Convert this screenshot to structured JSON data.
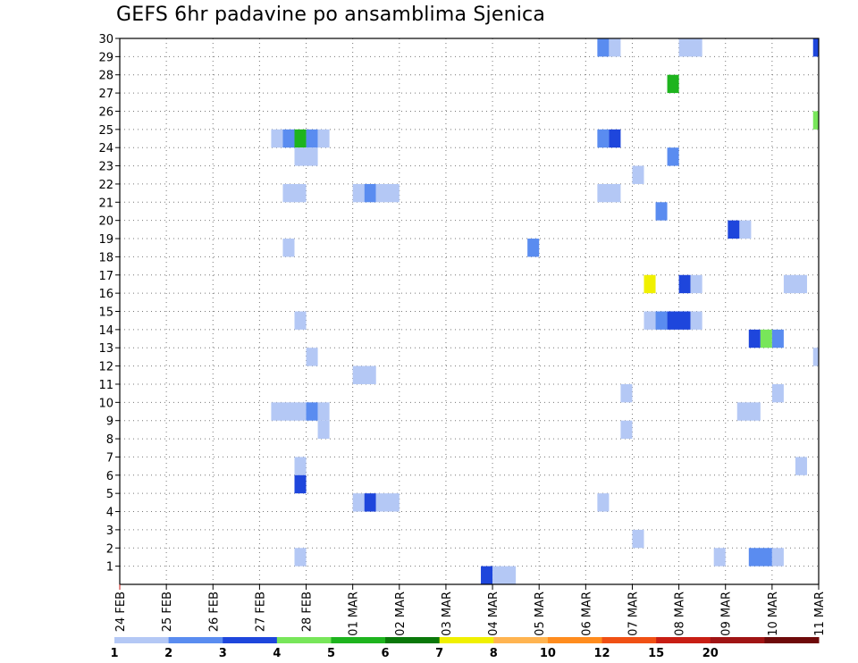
{
  "chart_data": {
    "type": "heatmap",
    "title": "GEFS 6hr padavine po ansamblima Sjenica",
    "xlabel": "",
    "ylabel": "",
    "x_unit": "day",
    "xlim": [
      0,
      15
    ],
    "ylim": [
      0,
      30
    ],
    "grid": true,
    "x_ticks": [
      {
        "x": 0,
        "label": "24 FEB"
      },
      {
        "x": 1,
        "label": "25 FEB"
      },
      {
        "x": 2,
        "label": "26 FEB"
      },
      {
        "x": 3,
        "label": "27 FEB"
      },
      {
        "x": 4,
        "label": "28 FEB"
      },
      {
        "x": 5,
        "label": "01 MAR"
      },
      {
        "x": 6,
        "label": "02 MAR"
      },
      {
        "x": 7,
        "label": "03 MAR"
      },
      {
        "x": 8,
        "label": "04 MAR"
      },
      {
        "x": 9,
        "label": "05 MAR"
      },
      {
        "x": 10,
        "label": "06 MAR"
      },
      {
        "x": 11,
        "label": "07 MAR"
      },
      {
        "x": 12,
        "label": "08 MAR"
      },
      {
        "x": 13,
        "label": "09 MAR"
      },
      {
        "x": 14,
        "label": "10 MAR"
      },
      {
        "x": 15,
        "label": "11 MAR"
      }
    ],
    "y_ticks": [
      1,
      2,
      3,
      4,
      5,
      6,
      7,
      8,
      9,
      10,
      11,
      12,
      13,
      14,
      15,
      16,
      17,
      18,
      19,
      20,
      21,
      22,
      23,
      24,
      25,
      26,
      27,
      28,
      29,
      30
    ],
    "legend": {
      "position": "bottom",
      "bins": [
        {
          "color": "#b4c8f5"
        },
        {
          "color": "#5a8cf0"
        },
        {
          "color": "#1e46dc"
        },
        {
          "color": "#78e65a"
        },
        {
          "color": "#1eb41e"
        },
        {
          "color": "#0a780a"
        },
        {
          "color": "#f0f000"
        },
        {
          "color": "#ffb450"
        },
        {
          "color": "#ff8c1e"
        },
        {
          "color": "#f05014"
        },
        {
          "color": "#c81e14"
        },
        {
          "color": "#a01414"
        },
        {
          "color": "#6e0a0a"
        }
      ],
      "labels": [
        {
          "at": 0,
          "text": "1"
        },
        {
          "at": 1,
          "text": "2"
        },
        {
          "at": 2,
          "text": "3"
        },
        {
          "at": 3,
          "text": "4"
        },
        {
          "at": 4,
          "text": "5"
        },
        {
          "at": 5,
          "text": "6"
        },
        {
          "at": 6,
          "text": "7"
        },
        {
          "at": 7,
          "text": "8"
        },
        {
          "at": 8,
          "text": "10"
        },
        {
          "at": 9,
          "text": "12"
        },
        {
          "at": 10,
          "text": "15"
        },
        {
          "at": 11,
          "text": "20"
        }
      ]
    },
    "cells": [
      {
        "member": 30,
        "x": 10.25,
        "w": 0.25,
        "level": 2
      },
      {
        "member": 30,
        "x": 10.5,
        "w": 0.25,
        "level": 1
      },
      {
        "member": 30,
        "x": 12,
        "w": 0.5,
        "level": 1
      },
      {
        "member": 30,
        "x": 14.88,
        "w": 0.12,
        "level": 3
      },
      {
        "member": 28,
        "x": 11.75,
        "w": 0.25,
        "level": 5
      },
      {
        "member": 26,
        "x": 14.88,
        "w": 0.12,
        "level": 4
      },
      {
        "member": 25,
        "x": 3.25,
        "w": 0.25,
        "level": 1
      },
      {
        "member": 25,
        "x": 3.5,
        "w": 0.25,
        "level": 2
      },
      {
        "member": 25,
        "x": 3.75,
        "w": 0.25,
        "level": 5
      },
      {
        "member": 25,
        "x": 4,
        "w": 0.25,
        "level": 2
      },
      {
        "member": 25,
        "x": 4.25,
        "w": 0.25,
        "level": 1
      },
      {
        "member": 25,
        "x": 10.25,
        "w": 0.25,
        "level": 2
      },
      {
        "member": 25,
        "x": 10.5,
        "w": 0.25,
        "level": 3
      },
      {
        "member": 24,
        "x": 3.75,
        "w": 0.5,
        "level": 1
      },
      {
        "member": 24,
        "x": 11.75,
        "w": 0.25,
        "level": 2
      },
      {
        "member": 23,
        "x": 11,
        "w": 0.25,
        "level": 1
      },
      {
        "member": 22,
        "x": 3.5,
        "w": 0.5,
        "level": 1
      },
      {
        "member": 22,
        "x": 5,
        "w": 0.25,
        "level": 1
      },
      {
        "member": 22,
        "x": 5.25,
        "w": 0.25,
        "level": 2
      },
      {
        "member": 22,
        "x": 5.5,
        "w": 0.5,
        "level": 1
      },
      {
        "member": 22,
        "x": 10.25,
        "w": 0.5,
        "level": 1
      },
      {
        "member": 21,
        "x": 11.5,
        "w": 0.25,
        "level": 2
      },
      {
        "member": 20,
        "x": 13.05,
        "w": 0.25,
        "level": 3
      },
      {
        "member": 20,
        "x": 13.3,
        "w": 0.25,
        "level": 1
      },
      {
        "member": 19,
        "x": 3.5,
        "w": 0.25,
        "level": 1
      },
      {
        "member": 19,
        "x": 8.75,
        "w": 0.25,
        "level": 2
      },
      {
        "member": 17,
        "x": 11.25,
        "w": 0.25,
        "level": 7
      },
      {
        "member": 17,
        "x": 12,
        "w": 0.25,
        "level": 3
      },
      {
        "member": 17,
        "x": 12.25,
        "w": 0.25,
        "level": 1
      },
      {
        "member": 17,
        "x": 14.25,
        "w": 0.5,
        "level": 1
      },
      {
        "member": 15,
        "x": 3.75,
        "w": 0.25,
        "level": 1
      },
      {
        "member": 15,
        "x": 11.25,
        "w": 0.25,
        "level": 1
      },
      {
        "member": 15,
        "x": 11.5,
        "w": 0.25,
        "level": 2
      },
      {
        "member": 15,
        "x": 11.75,
        "w": 0.5,
        "level": 3
      },
      {
        "member": 15,
        "x": 12.25,
        "w": 0.25,
        "level": 1
      },
      {
        "member": 14,
        "x": 13.5,
        "w": 0.25,
        "level": 3
      },
      {
        "member": 14,
        "x": 13.75,
        "w": 0.25,
        "level": 4
      },
      {
        "member": 14,
        "x": 14,
        "w": 0.25,
        "level": 2
      },
      {
        "member": 13,
        "x": 4,
        "w": 0.25,
        "level": 1
      },
      {
        "member": 13,
        "x": 14.88,
        "w": 0.12,
        "level": 1
      },
      {
        "member": 12,
        "x": 5,
        "w": 0.5,
        "level": 1
      },
      {
        "member": 11,
        "x": 10.75,
        "w": 0.25,
        "level": 1
      },
      {
        "member": 11,
        "x": 14,
        "w": 0.25,
        "level": 1
      },
      {
        "member": 10,
        "x": 3.25,
        "w": 0.75,
        "level": 1
      },
      {
        "member": 10,
        "x": 4,
        "w": 0.25,
        "level": 2
      },
      {
        "member": 10,
        "x": 4.25,
        "w": 0.25,
        "level": 1
      },
      {
        "member": 10,
        "x": 13.25,
        "w": 0.5,
        "level": 1
      },
      {
        "member": 9,
        "x": 4.25,
        "w": 0.25,
        "level": 1
      },
      {
        "member": 9,
        "x": 10.75,
        "w": 0.25,
        "level": 1
      },
      {
        "member": 7,
        "x": 3.75,
        "w": 0.25,
        "level": 1
      },
      {
        "member": 7,
        "x": 14.5,
        "w": 0.25,
        "level": 1
      },
      {
        "member": 6,
        "x": 3.75,
        "w": 0.25,
        "level": 3
      },
      {
        "member": 5,
        "x": 5,
        "w": 0.25,
        "level": 1
      },
      {
        "member": 5,
        "x": 5.25,
        "w": 0.25,
        "level": 3
      },
      {
        "member": 5,
        "x": 5.5,
        "w": 0.5,
        "level": 1
      },
      {
        "member": 5,
        "x": 10.25,
        "w": 0.25,
        "level": 1
      },
      {
        "member": 3,
        "x": 11,
        "w": 0.25,
        "level": 1
      },
      {
        "member": 2,
        "x": 3.75,
        "w": 0.25,
        "level": 1
      },
      {
        "member": 2,
        "x": 12.75,
        "w": 0.25,
        "level": 1
      },
      {
        "member": 2,
        "x": 13.5,
        "w": 0.5,
        "level": 2
      },
      {
        "member": 2,
        "x": 14,
        "w": 0.25,
        "level": 1
      },
      {
        "member": 1,
        "x": 7.75,
        "w": 0.25,
        "level": 3
      },
      {
        "member": 1,
        "x": 8,
        "w": 0.5,
        "level": 1
      }
    ]
  }
}
